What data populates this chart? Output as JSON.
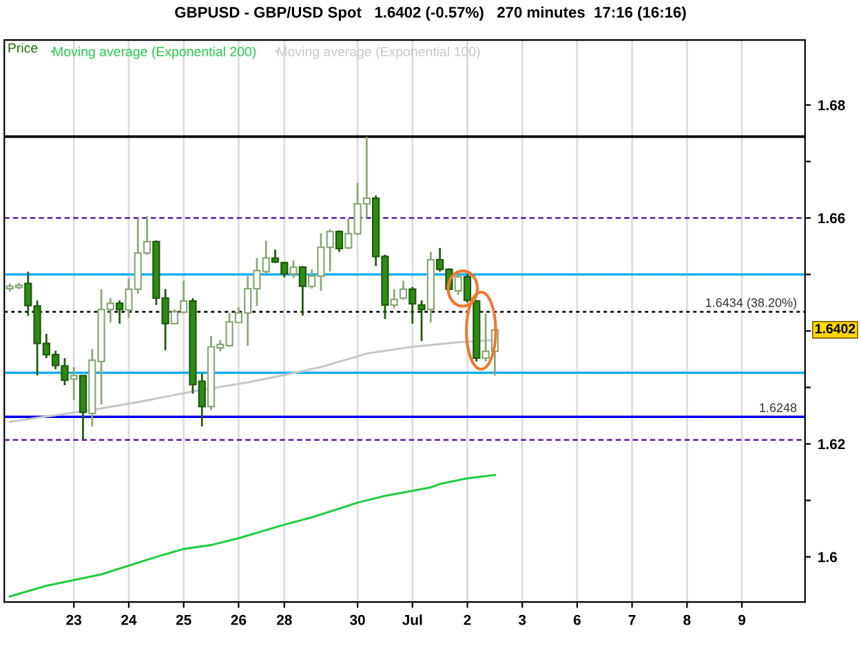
{
  "chart_data": {
    "type": "candlestick",
    "title": "GBPUSD - GBP/USD Spot   1.6402 (-0.57%)   270 minutes  17:16 (16:16)",
    "ylabel": "Price",
    "categories": [
      null,
      null,
      null,
      null,
      null,
      null,
      null,
      "23",
      null,
      null,
      null,
      null,
      null,
      "24",
      null,
      null,
      null,
      null,
      null,
      "25",
      null,
      null,
      null,
      null,
      null,
      "26",
      null,
      null,
      null,
      null,
      "28",
      null,
      null,
      null,
      null,
      null,
      null,
      null,
      "30",
      null,
      null,
      null,
      null,
      null,
      "Jul",
      null,
      null,
      null,
      null,
      null,
      "2",
      null,
      null,
      null,
      null,
      null,
      "3",
      null,
      null,
      null,
      null,
      null,
      "6",
      null,
      null,
      null,
      null,
      null,
      "7",
      null,
      null,
      null,
      null,
      null,
      "8",
      null,
      null,
      null,
      null,
      null,
      "9",
      null,
      null,
      null,
      null,
      null,
      null
    ],
    "ohlc": [
      [
        1.6475,
        1.6484,
        1.647,
        1.6479
      ],
      [
        1.6477,
        1.6485,
        1.6474,
        1.6481
      ],
      [
        1.6484,
        1.6505,
        1.6427,
        1.6445
      ],
      [
        1.6444,
        1.6454,
        1.6321,
        1.6378
      ],
      [
        1.6378,
        1.6395,
        1.6352,
        1.6358
      ],
      [
        1.6358,
        1.6365,
        1.6332,
        1.6339
      ],
      [
        1.6338,
        1.6352,
        1.6304,
        1.6313
      ],
      [
        1.6315,
        1.6336,
        1.6278,
        1.6321
      ],
      [
        1.6321,
        1.6322,
        1.6207,
        1.6256
      ],
      [
        1.6254,
        1.6368,
        1.6231,
        1.6348
      ],
      [
        1.6346,
        1.6474,
        1.627,
        1.6438
      ],
      [
        1.6438,
        1.6458,
        1.6415,
        1.6449
      ],
      [
        1.6449,
        1.6454,
        1.6413,
        1.6438
      ],
      [
        1.6437,
        1.6493,
        1.6423,
        1.6474
      ],
      [
        1.6474,
        1.6599,
        1.6466,
        1.6538
      ],
      [
        1.6538,
        1.6603,
        1.6535,
        1.6558
      ],
      [
        1.6558,
        1.656,
        1.6446,
        1.6458
      ],
      [
        1.6458,
        1.6474,
        1.6366,
        1.6413
      ],
      [
        1.6413,
        1.6438,
        1.6412,
        1.6434
      ],
      [
        1.6433,
        1.6489,
        1.6431,
        1.6453
      ],
      [
        1.6453,
        1.6458,
        1.6289,
        1.6305
      ],
      [
        1.6311,
        1.6325,
        1.6231,
        1.6266
      ],
      [
        1.6266,
        1.6391,
        1.626,
        1.6372
      ],
      [
        1.637,
        1.6384,
        1.6364,
        1.6376
      ],
      [
        1.6374,
        1.6432,
        1.6372,
        1.6416
      ],
      [
        1.6415,
        1.6442,
        1.6414,
        1.6432
      ],
      [
        1.6432,
        1.6497,
        1.6374,
        1.6475
      ],
      [
        1.6475,
        1.6529,
        1.6444,
        1.6507
      ],
      [
        1.6505,
        1.656,
        1.6501,
        1.6529
      ],
      [
        1.6529,
        1.6544,
        1.652,
        1.6522
      ],
      [
        1.6521,
        1.6522,
        1.6495,
        1.6501
      ],
      [
        1.6501,
        1.6525,
        1.6494,
        1.6513
      ],
      [
        1.6513,
        1.6515,
        1.6427,
        1.6479
      ],
      [
        1.6479,
        1.6509,
        1.6475,
        1.6497
      ],
      [
        1.6497,
        1.6573,
        1.6471,
        1.6548
      ],
      [
        1.6548,
        1.658,
        1.6505,
        1.6576
      ],
      [
        1.6576,
        1.6578,
        1.654,
        1.6546
      ],
      [
        1.6547,
        1.6599,
        1.6545,
        1.6572
      ],
      [
        1.6572,
        1.6662,
        1.657,
        1.6625
      ],
      [
        1.6625,
        1.6744,
        1.66,
        1.6635
      ],
      [
        1.6635,
        1.664,
        1.6515,
        1.6532
      ],
      [
        1.6532,
        1.6535,
        1.6421,
        1.6446
      ],
      [
        1.6446,
        1.6474,
        1.644,
        1.6456
      ],
      [
        1.6458,
        1.6489,
        1.6455,
        1.6474
      ],
      [
        1.6474,
        1.6478,
        1.6413,
        1.6448
      ],
      [
        1.6446,
        1.6454,
        1.6382,
        1.6438
      ],
      [
        1.6438,
        1.654,
        1.6415,
        1.6526
      ],
      [
        1.6526,
        1.6547,
        1.6505,
        1.6509
      ],
      [
        1.6509,
        1.6511,
        1.647,
        1.6474
      ],
      [
        1.6471,
        1.65,
        1.6464,
        1.6496
      ],
      [
        1.6496,
        1.65,
        1.645,
        1.6454
      ],
      [
        1.6453,
        1.6455,
        1.6346,
        1.6352
      ],
      [
        1.6352,
        1.6431,
        1.6346,
        1.6364
      ],
      [
        1.6364,
        1.6403,
        1.6321,
        1.6402
      ],
      null,
      null,
      null,
      null,
      null,
      null,
      null,
      null,
      null,
      null,
      null,
      null,
      null,
      null,
      null,
      null,
      null,
      null,
      null,
      null,
      null,
      null,
      null,
      null,
      null,
      null,
      null,
      null,
      null,
      null,
      null,
      null,
      null
    ],
    "series": [
      {
        "name": "Moving average (Exponential 200)",
        "type": "line",
        "color": "#22cc44",
        "values": [
          1.593,
          null,
          null,
          null,
          1.5949,
          null,
          null,
          null,
          null,
          null,
          1.5969,
          null,
          null,
          null,
          null,
          null,
          1.6,
          null,
          null,
          1.6014,
          null,
          null,
          1.6021,
          null,
          null,
          1.6033,
          null,
          null,
          null,
          null,
          1.6057,
          null,
          null,
          1.607,
          null,
          null,
          null,
          null,
          1.6096,
          null,
          null,
          1.6108,
          null,
          null,
          null,
          null,
          1.6123,
          1.6129,
          null,
          null,
          1.6139,
          null,
          null,
          1.6145,
          null,
          null,
          null,
          null,
          null,
          null,
          null,
          null,
          null,
          null,
          null,
          null,
          null,
          null,
          null,
          null,
          null,
          null,
          null,
          null,
          null,
          null,
          null,
          null,
          null,
          null,
          null,
          null,
          null,
          null,
          null,
          null,
          null
        ]
      },
      {
        "name": "Moving average (Exponential 100)",
        "type": "line",
        "color": "#c8c8c8",
        "values": [
          1.6239,
          null,
          null,
          null,
          null,
          null,
          null,
          null,
          null,
          1.626,
          null,
          null,
          null,
          null,
          1.6274,
          null,
          null,
          null,
          null,
          null,
          1.6293,
          null,
          null,
          null,
          null,
          null,
          1.6309,
          null,
          null,
          null,
          1.6322,
          null,
          null,
          null,
          1.6336,
          null,
          null,
          null,
          null,
          1.636,
          null,
          null,
          null,
          null,
          1.6372,
          null,
          null,
          null,
          null,
          1.638,
          null,
          null,
          null,
          1.6384,
          null,
          null,
          null,
          null,
          null,
          null,
          null,
          null,
          null,
          null,
          null,
          null,
          null,
          null,
          null,
          null,
          null,
          null,
          null,
          null,
          null,
          null,
          null,
          null,
          null,
          null,
          null,
          null,
          null,
          null,
          null,
          null,
          null
        ]
      }
    ],
    "ref_lines": [
      {
        "axis": "y",
        "value": 1.6744,
        "color": "#000000",
        "line_style": "solid"
      },
      {
        "axis": "y",
        "value": 1.66,
        "color": "#5a1a9a",
        "line_style": "dashed"
      },
      {
        "axis": "y",
        "value": 1.6434,
        "label": "1.6434 (38.20%)",
        "color": "#000000",
        "line_style": "dotted"
      },
      {
        "axis": "y",
        "value": 1.65,
        "color": "#1aaef0",
        "line_style": "solid"
      },
      {
        "axis": "y",
        "value": 1.6326,
        "color": "#1aaef0",
        "line_style": "solid"
      },
      {
        "axis": "y",
        "value": 1.6248,
        "label": "1.6248",
        "color": "#0000ee",
        "line_style": "solid"
      },
      {
        "axis": "y",
        "value": 1.6207,
        "color": "#5a1a9a",
        "line_style": "dashed"
      }
    ],
    "annotations": [
      "1.6402"
    ],
    "ylim": [
      1.592,
      1.6915
    ],
    "yticks": [
      1.6,
      {
        "value": 1.61,
        "label": null
      },
      1.62,
      {
        "value": 1.63,
        "label": null
      },
      {
        "value": 1.64,
        "label": null
      },
      {
        "value": 1.65,
        "label": null
      },
      1.66,
      {
        "value": 1.67,
        "label": null
      },
      1.68
    ],
    "grid": "x",
    "legend": "top left"
  }
}
